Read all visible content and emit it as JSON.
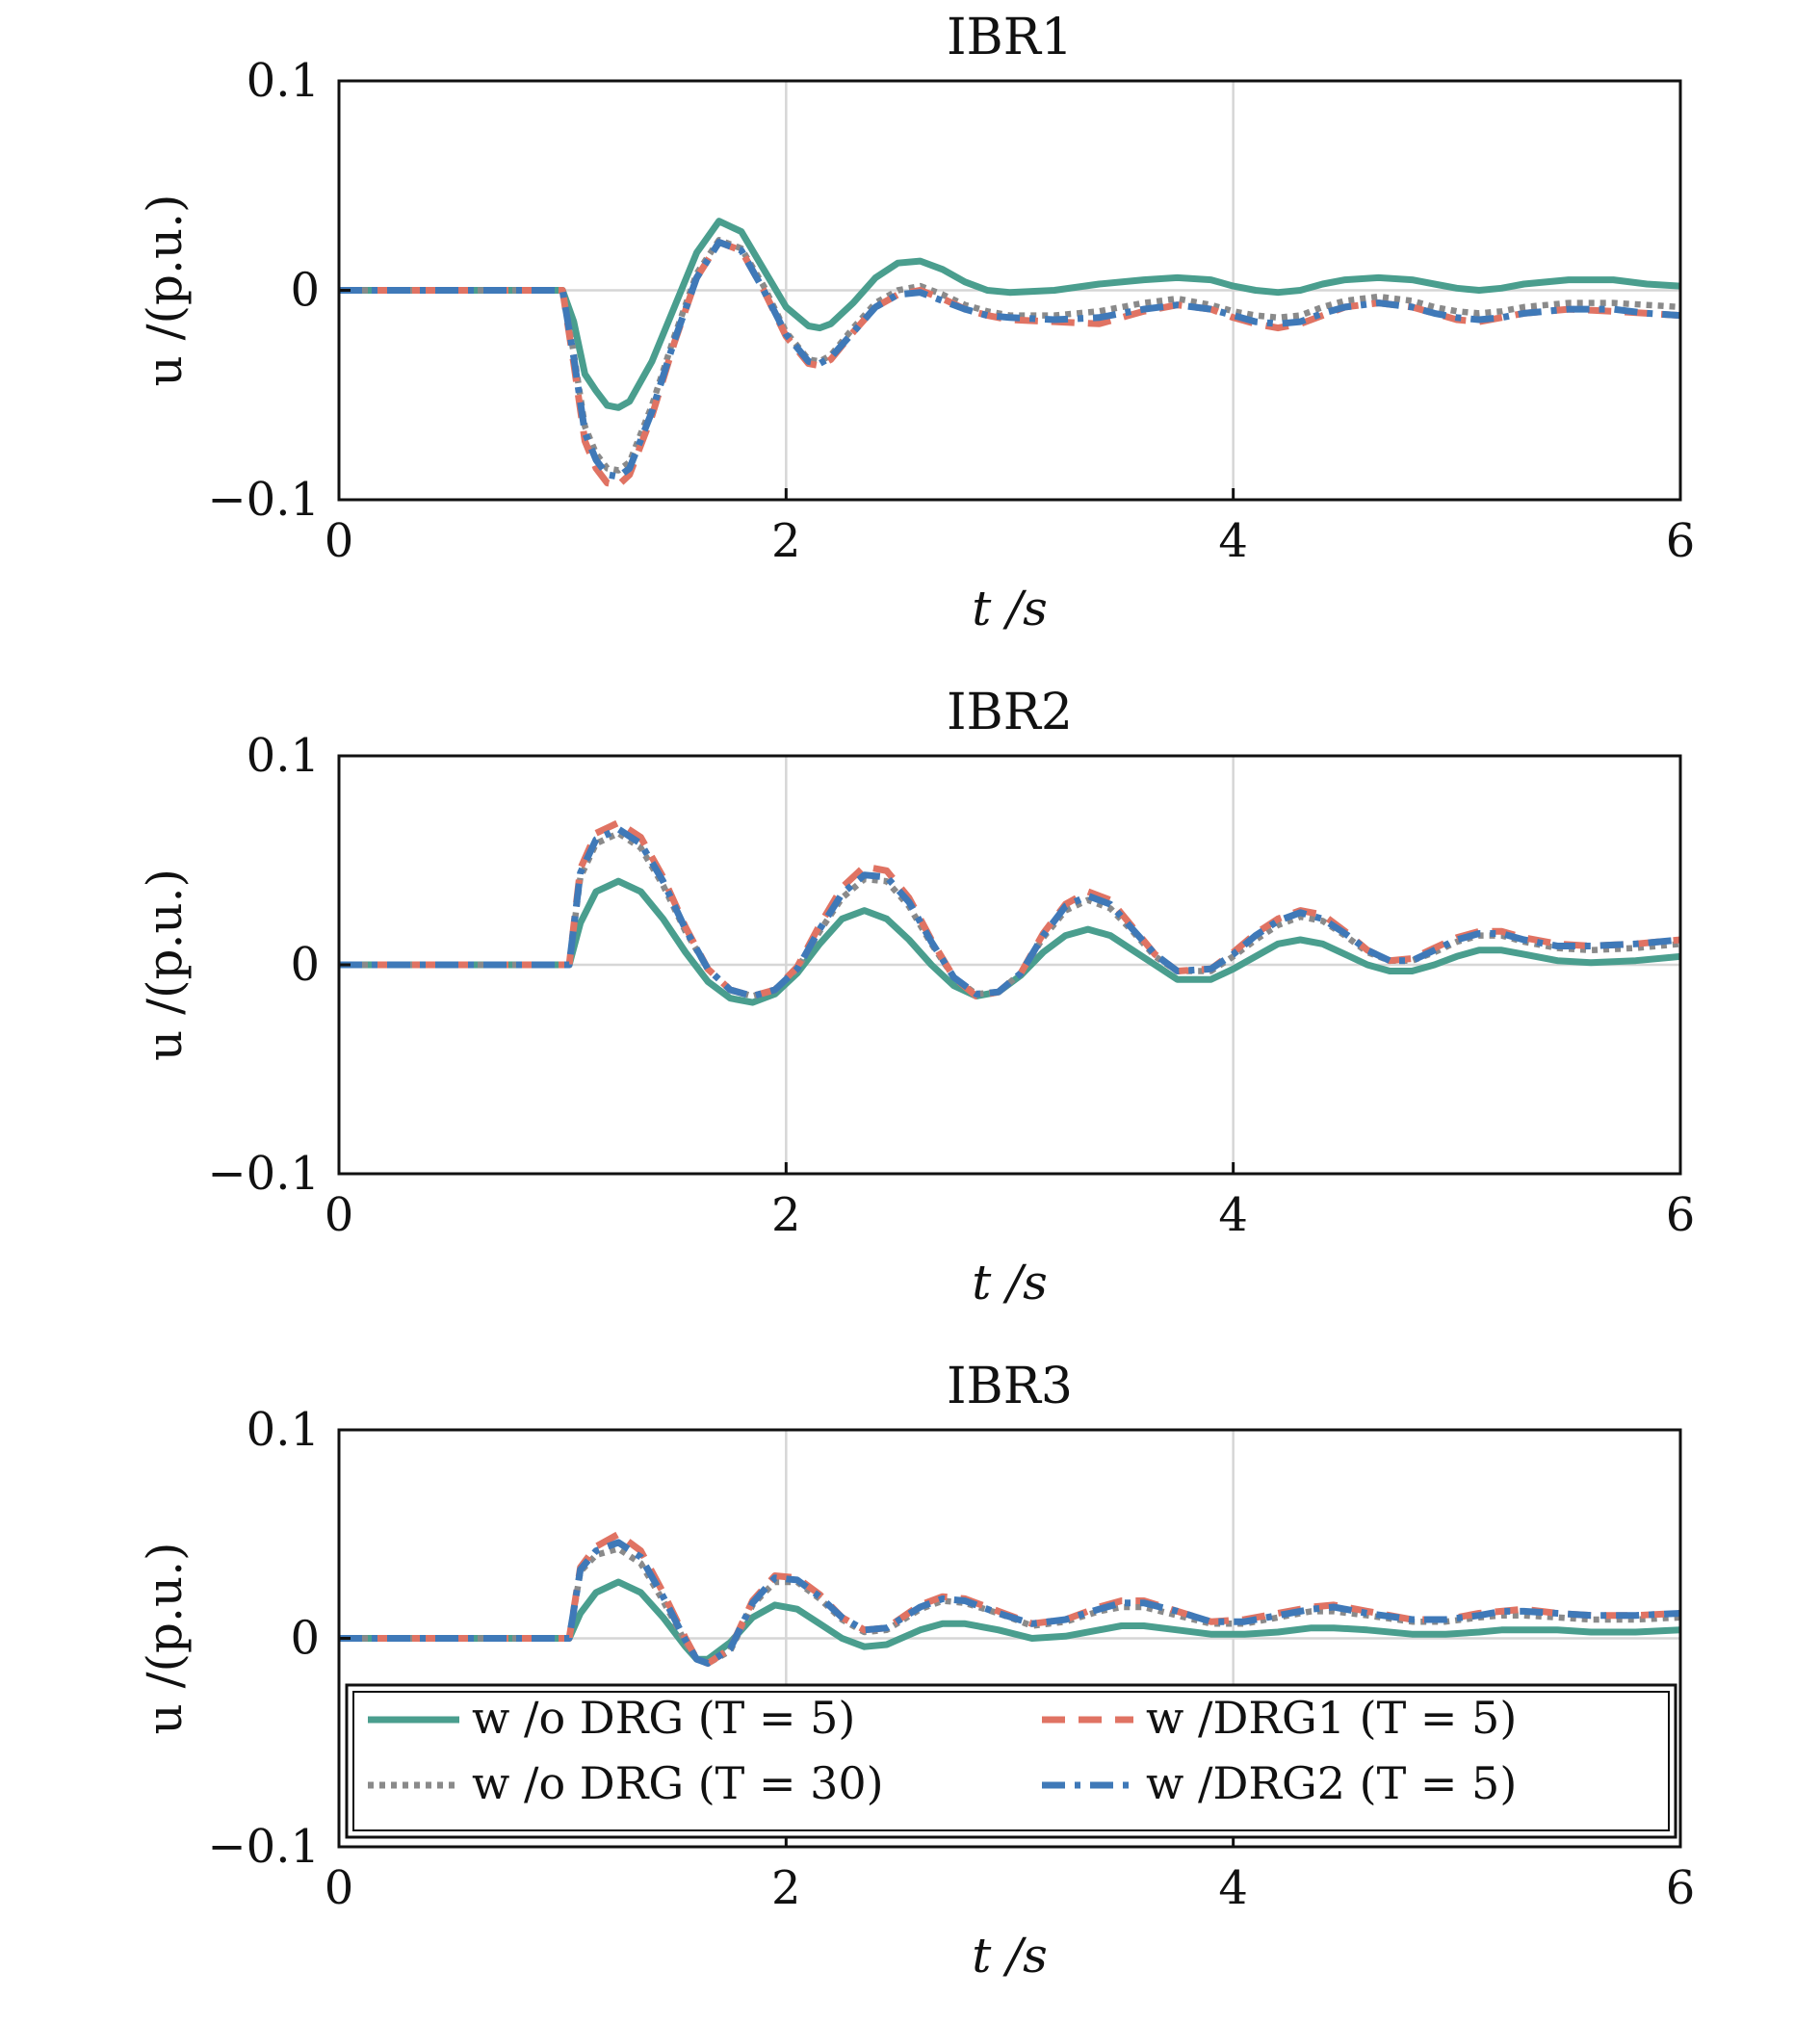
{
  "figure": {
    "legend": {
      "placement": "lower",
      "entries": [
        {
          "series": "wo_t5",
          "label": "w /o DRG (T = 5)"
        },
        {
          "series": "drg1",
          "label": "w /DRG1 (T = 5)"
        },
        {
          "series": "wo_t30",
          "label": "w /o DRG (T = 30)"
        },
        {
          "series": "drg2",
          "label": "w /DRG2 (T = 5)"
        }
      ]
    },
    "styles": {
      "wo_t5": {
        "color": "#4a9e8e",
        "dash": "solid"
      },
      "wo_t30": {
        "color": "#8a8a8a",
        "dash": "dotted"
      },
      "drg1": {
        "color": "#e07363",
        "dash": "dashed"
      },
      "drg2": {
        "color": "#3f79b8",
        "dash": "dashdot"
      }
    }
  },
  "chart_data": [
    {
      "type": "line",
      "title": "IBR1",
      "xlabel": "t /s",
      "ylabel": "u /(p.u.)",
      "xlim": [
        0,
        6
      ],
      "ylim": [
        -0.1,
        0.1
      ],
      "xticks": [
        0,
        2,
        4,
        6
      ],
      "xtick_labels": [
        "0",
        "2",
        "4",
        "6"
      ],
      "yticks": [
        -0.1,
        0,
        0.1
      ],
      "ytick_labels": [
        "−0.1",
        "0",
        "0.1"
      ],
      "grid": true,
      "x": [
        0,
        1.0,
        1.05,
        1.1,
        1.15,
        1.2,
        1.25,
        1.3,
        1.4,
        1.5,
        1.6,
        1.7,
        1.8,
        1.9,
        2.0,
        2.1,
        2.15,
        2.2,
        2.3,
        2.4,
        2.5,
        2.6,
        2.7,
        2.8,
        2.9,
        3.0,
        3.2,
        3.4,
        3.6,
        3.75,
        3.9,
        4.0,
        4.1,
        4.2,
        4.3,
        4.4,
        4.5,
        4.65,
        4.8,
        4.9,
        5.0,
        5.1,
        5.2,
        5.3,
        5.5,
        5.7,
        5.85,
        6.0
      ],
      "series": [
        {
          "key": "wo_t5",
          "values": [
            0,
            0,
            -0.015,
            -0.04,
            -0.048,
            -0.055,
            -0.056,
            -0.053,
            -0.034,
            -0.008,
            0.018,
            0.033,
            0.028,
            0.01,
            -0.008,
            -0.017,
            -0.018,
            -0.016,
            -0.006,
            0.006,
            0.013,
            0.014,
            0.01,
            0.004,
            0,
            -0.001,
            0,
            0.003,
            0.005,
            0.006,
            0.005,
            0.002,
            0,
            -0.001,
            0,
            0.003,
            0.005,
            0.006,
            0.005,
            0.003,
            0.001,
            0,
            0.001,
            0.003,
            0.005,
            0.005,
            0.003,
            0.002
          ]
        },
        {
          "key": "wo_t30",
          "values": [
            0,
            0,
            -0.03,
            -0.065,
            -0.078,
            -0.085,
            -0.086,
            -0.082,
            -0.055,
            -0.022,
            0.008,
            0.024,
            0.02,
            0.002,
            -0.02,
            -0.033,
            -0.034,
            -0.031,
            -0.018,
            -0.006,
            0.0,
            0.002,
            -0.002,
            -0.007,
            -0.01,
            -0.012,
            -0.012,
            -0.01,
            -0.006,
            -0.004,
            -0.007,
            -0.01,
            -0.012,
            -0.013,
            -0.012,
            -0.008,
            -0.005,
            -0.003,
            -0.005,
            -0.008,
            -0.01,
            -0.011,
            -0.01,
            -0.008,
            -0.006,
            -0.006,
            -0.007,
            -0.008
          ]
        },
        {
          "key": "drg1",
          "values": [
            0,
            0,
            -0.035,
            -0.072,
            -0.085,
            -0.092,
            -0.093,
            -0.088,
            -0.06,
            -0.025,
            0.006,
            0.023,
            0.019,
            0.0,
            -0.022,
            -0.035,
            -0.036,
            -0.033,
            -0.02,
            -0.008,
            -0.002,
            0.0,
            -0.004,
            -0.009,
            -0.012,
            -0.014,
            -0.015,
            -0.016,
            -0.01,
            -0.007,
            -0.009,
            -0.013,
            -0.016,
            -0.018,
            -0.016,
            -0.012,
            -0.008,
            -0.006,
            -0.008,
            -0.011,
            -0.014,
            -0.015,
            -0.013,
            -0.011,
            -0.009,
            -0.01,
            -0.011,
            -0.012
          ]
        },
        {
          "key": "drg2",
          "values": [
            0,
            0,
            -0.032,
            -0.068,
            -0.081,
            -0.088,
            -0.089,
            -0.085,
            -0.058,
            -0.024,
            0.006,
            0.023,
            0.019,
            0.0,
            -0.021,
            -0.034,
            -0.035,
            -0.032,
            -0.02,
            -0.008,
            -0.002,
            -0.001,
            -0.005,
            -0.009,
            -0.012,
            -0.013,
            -0.014,
            -0.013,
            -0.009,
            -0.007,
            -0.009,
            -0.012,
            -0.015,
            -0.016,
            -0.015,
            -0.011,
            -0.008,
            -0.006,
            -0.008,
            -0.011,
            -0.013,
            -0.014,
            -0.013,
            -0.011,
            -0.009,
            -0.009,
            -0.011,
            -0.012
          ]
        }
      ]
    },
    {
      "type": "line",
      "title": "IBR2",
      "xlabel": "t /s",
      "ylabel": "u /(p.u.)",
      "xlim": [
        0,
        6
      ],
      "ylim": [
        -0.1,
        0.1
      ],
      "xticks": [
        0,
        2,
        4,
        6
      ],
      "xtick_labels": [
        "0",
        "2",
        "4",
        "6"
      ],
      "yticks": [
        -0.1,
        0,
        0.1
      ],
      "ytick_labels": [
        "−0.1",
        "0",
        "0.1"
      ],
      "grid": true,
      "x": [
        0,
        1.03,
        1.08,
        1.15,
        1.25,
        1.35,
        1.45,
        1.55,
        1.65,
        1.75,
        1.85,
        1.95,
        2.05,
        2.15,
        2.25,
        2.35,
        2.45,
        2.55,
        2.65,
        2.75,
        2.85,
        2.95,
        3.05,
        3.15,
        3.25,
        3.35,
        3.45,
        3.55,
        3.65,
        3.75,
        3.9,
        4.0,
        4.1,
        4.2,
        4.3,
        4.4,
        4.5,
        4.6,
        4.7,
        4.8,
        4.9,
        5.0,
        5.1,
        5.2,
        5.3,
        5.45,
        5.6,
        5.8,
        6.0
      ],
      "series": [
        {
          "key": "wo_t5",
          "values": [
            0,
            0,
            0.02,
            0.035,
            0.04,
            0.035,
            0.022,
            0.006,
            -0.008,
            -0.016,
            -0.018,
            -0.014,
            -0.004,
            0.01,
            0.022,
            0.026,
            0.022,
            0.012,
            0.0,
            -0.01,
            -0.015,
            -0.013,
            -0.005,
            0.006,
            0.014,
            0.017,
            0.014,
            0.007,
            0.0,
            -0.007,
            -0.007,
            -0.002,
            0.004,
            0.01,
            0.012,
            0.01,
            0.005,
            0.0,
            -0.003,
            -0.003,
            0.0,
            0.004,
            0.007,
            0.007,
            0.005,
            0.002,
            0.001,
            0.002,
            0.004
          ]
        },
        {
          "key": "wo_t30",
          "values": [
            0,
            0,
            0.042,
            0.058,
            0.063,
            0.056,
            0.038,
            0.016,
            -0.002,
            -0.012,
            -0.015,
            -0.012,
            -0.002,
            0.016,
            0.032,
            0.041,
            0.04,
            0.028,
            0.01,
            -0.006,
            -0.014,
            -0.013,
            -0.004,
            0.013,
            0.026,
            0.031,
            0.027,
            0.016,
            0.004,
            -0.003,
            -0.003,
            0.004,
            0.012,
            0.019,
            0.023,
            0.021,
            0.014,
            0.006,
            0.002,
            0.002,
            0.006,
            0.011,
            0.014,
            0.014,
            0.011,
            0.008,
            0.007,
            0.008,
            0.01
          ]
        },
        {
          "key": "drg1",
          "values": [
            0,
            0,
            0.046,
            0.063,
            0.068,
            0.061,
            0.042,
            0.018,
            -0.002,
            -0.012,
            -0.015,
            -0.012,
            -0.001,
            0.019,
            0.037,
            0.047,
            0.045,
            0.032,
            0.012,
            -0.006,
            -0.015,
            -0.013,
            -0.004,
            0.015,
            0.029,
            0.035,
            0.031,
            0.018,
            0.005,
            -0.003,
            -0.002,
            0.006,
            0.015,
            0.022,
            0.026,
            0.024,
            0.016,
            0.007,
            0.002,
            0.003,
            0.008,
            0.013,
            0.016,
            0.016,
            0.013,
            0.01,
            0.009,
            0.01,
            0.012
          ]
        },
        {
          "key": "drg2",
          "values": [
            0,
            0,
            0.044,
            0.06,
            0.065,
            0.058,
            0.04,
            0.017,
            -0.002,
            -0.012,
            -0.015,
            -0.012,
            -0.002,
            0.017,
            0.034,
            0.043,
            0.042,
            0.03,
            0.011,
            -0.006,
            -0.014,
            -0.013,
            -0.004,
            0.014,
            0.028,
            0.033,
            0.029,
            0.017,
            0.005,
            -0.003,
            -0.002,
            0.005,
            0.014,
            0.021,
            0.025,
            0.022,
            0.015,
            0.007,
            0.002,
            0.002,
            0.007,
            0.012,
            0.015,
            0.015,
            0.012,
            0.009,
            0.009,
            0.01,
            0.012
          ]
        }
      ]
    },
    {
      "type": "line",
      "title": "IBR3",
      "xlabel": "t /s",
      "ylabel": "u /(p.u.)",
      "xlim": [
        0,
        6
      ],
      "ylim": [
        -0.1,
        0.1
      ],
      "xticks": [
        0,
        2,
        4,
        6
      ],
      "xtick_labels": [
        "0",
        "2",
        "4",
        "6"
      ],
      "yticks": [
        -0.1,
        0,
        0.1
      ],
      "ytick_labels": [
        "−0.1",
        "0",
        "0.1"
      ],
      "grid": true,
      "x": [
        0,
        1.03,
        1.08,
        1.15,
        1.25,
        1.35,
        1.45,
        1.55,
        1.6,
        1.65,
        1.75,
        1.85,
        1.95,
        2.05,
        2.15,
        2.25,
        2.35,
        2.45,
        2.6,
        2.7,
        2.8,
        2.95,
        3.1,
        3.25,
        3.4,
        3.5,
        3.6,
        3.75,
        3.9,
        4.05,
        4.2,
        4.35,
        4.45,
        4.6,
        4.8,
        4.95,
        5.1,
        5.2,
        5.3,
        5.45,
        5.6,
        5.8,
        6.0
      ],
      "series": [
        {
          "key": "wo_t5",
          "values": [
            0,
            0,
            0.012,
            0.022,
            0.027,
            0.022,
            0.01,
            -0.004,
            -0.01,
            -0.01,
            -0.002,
            0.01,
            0.016,
            0.014,
            0.007,
            0.0,
            -0.004,
            -0.003,
            0.004,
            0.007,
            0.007,
            0.004,
            0.0,
            0.001,
            0.004,
            0.006,
            0.006,
            0.004,
            0.002,
            0.002,
            0.003,
            0.005,
            0.005,
            0.004,
            0.002,
            0.002,
            0.003,
            0.004,
            0.004,
            0.004,
            0.003,
            0.003,
            0.004
          ]
        },
        {
          "key": "wo_t30",
          "values": [
            0,
            0,
            0.032,
            0.04,
            0.043,
            0.036,
            0.018,
            -0.002,
            -0.01,
            -0.012,
            -0.006,
            0.016,
            0.027,
            0.027,
            0.019,
            0.009,
            0.003,
            0.004,
            0.014,
            0.018,
            0.017,
            0.012,
            0.006,
            0.008,
            0.013,
            0.015,
            0.015,
            0.011,
            0.007,
            0.007,
            0.01,
            0.013,
            0.013,
            0.011,
            0.008,
            0.008,
            0.01,
            0.011,
            0.011,
            0.01,
            0.009,
            0.009,
            0.01
          ]
        },
        {
          "key": "drg1",
          "values": [
            0,
            0,
            0.034,
            0.044,
            0.05,
            0.042,
            0.022,
            0.0,
            -0.01,
            -0.012,
            -0.005,
            0.018,
            0.03,
            0.029,
            0.021,
            0.01,
            0.004,
            0.005,
            0.016,
            0.02,
            0.019,
            0.013,
            0.007,
            0.009,
            0.015,
            0.018,
            0.018,
            0.013,
            0.008,
            0.009,
            0.012,
            0.015,
            0.016,
            0.013,
            0.009,
            0.009,
            0.012,
            0.013,
            0.014,
            0.012,
            0.011,
            0.011,
            0.012
          ]
        },
        {
          "key": "drg2",
          "values": [
            0,
            0,
            0.033,
            0.042,
            0.046,
            0.039,
            0.02,
            -0.001,
            -0.01,
            -0.012,
            -0.005,
            0.017,
            0.029,
            0.028,
            0.02,
            0.01,
            0.004,
            0.005,
            0.015,
            0.019,
            0.018,
            0.012,
            0.007,
            0.009,
            0.014,
            0.017,
            0.017,
            0.013,
            0.008,
            0.008,
            0.011,
            0.014,
            0.015,
            0.012,
            0.009,
            0.009,
            0.011,
            0.013,
            0.013,
            0.012,
            0.011,
            0.011,
            0.012
          ]
        }
      ]
    }
  ]
}
